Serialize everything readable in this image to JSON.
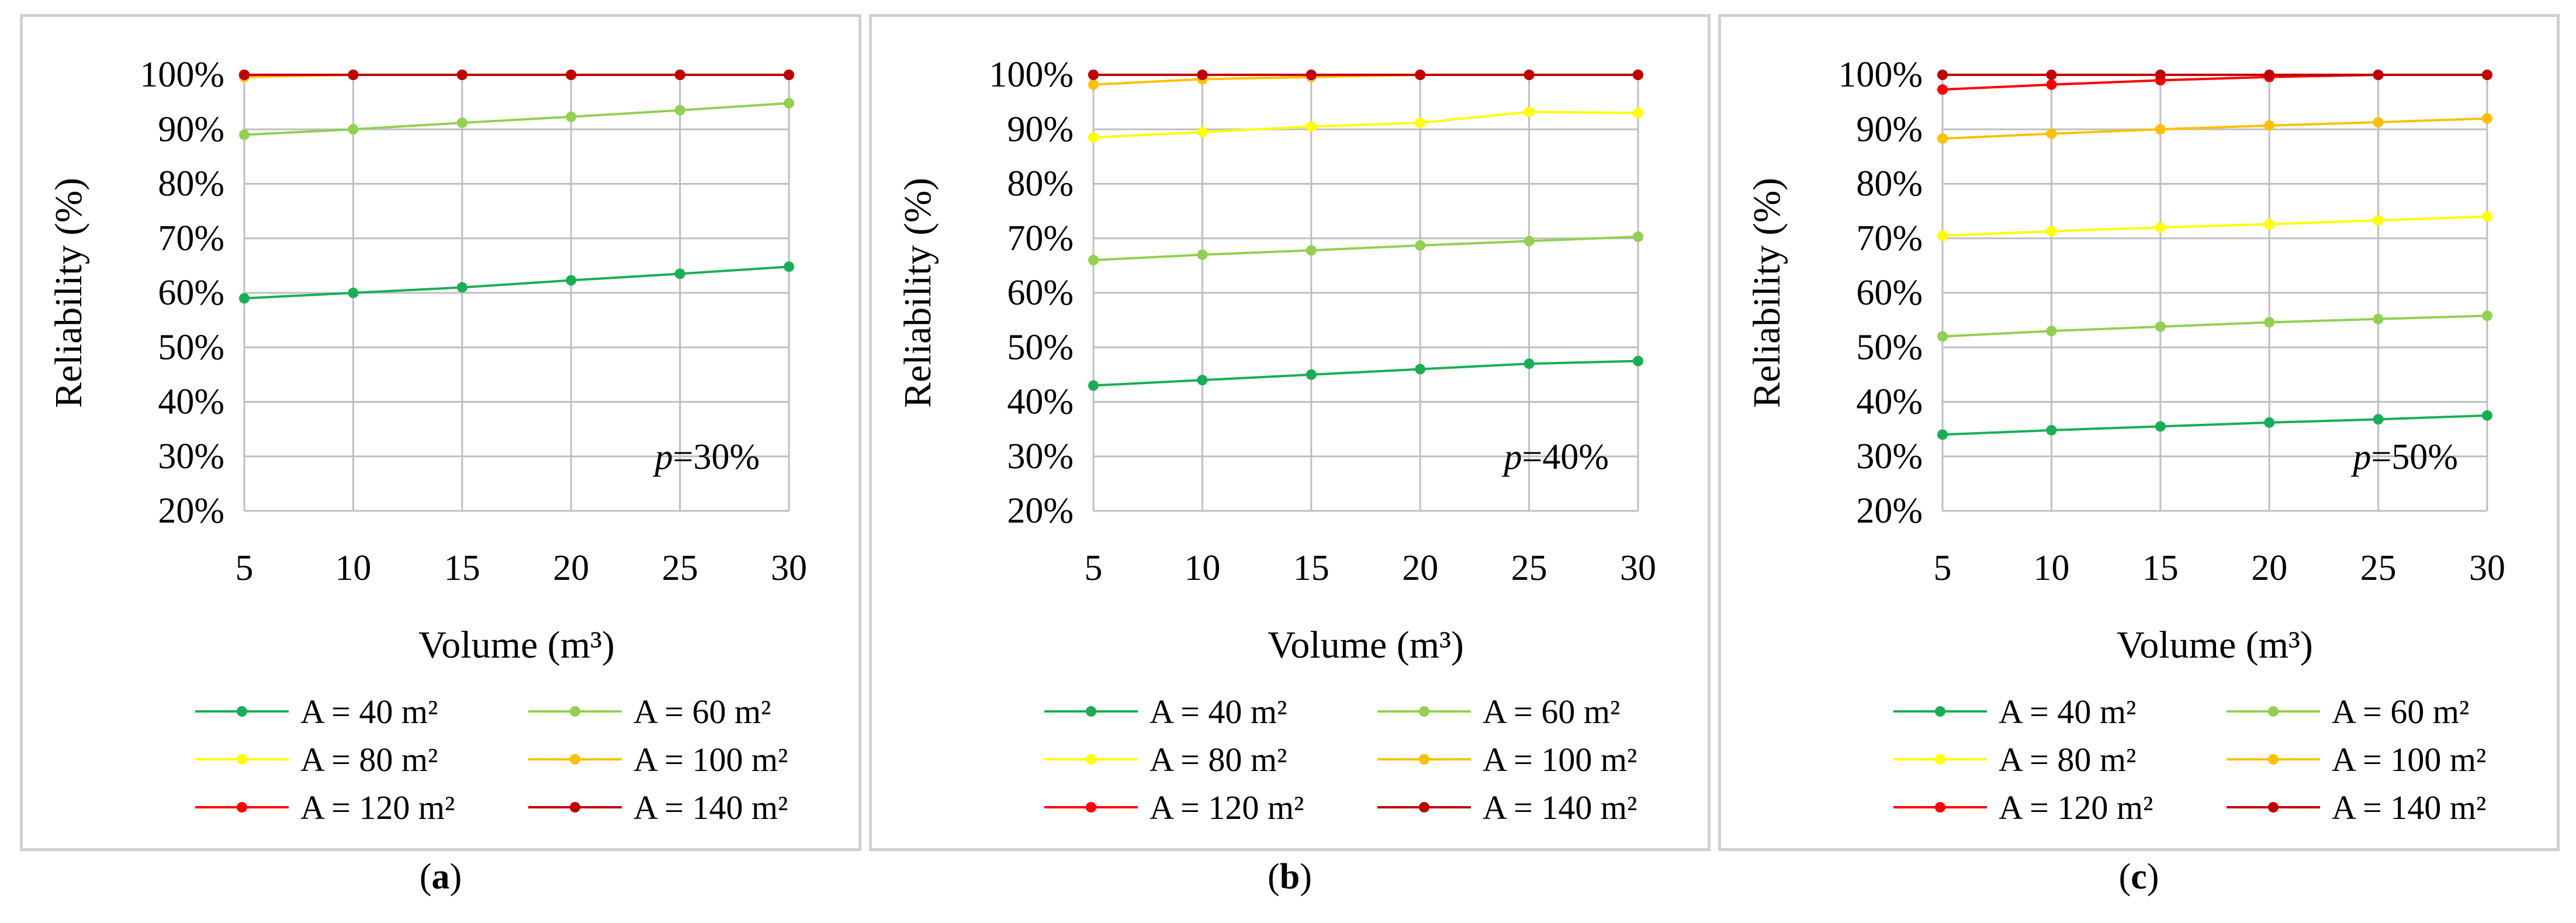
{
  "chart_data": [
    {
      "type": "line",
      "panel": "a",
      "caption": "a",
      "annotation_prefix": "p",
      "annotation_value": "=30%",
      "xlabel": "Volume (m³)",
      "ylabel": "Reliability (%)",
      "x": [
        5,
        10,
        15,
        20,
        25,
        30
      ],
      "ylim": [
        20,
        100
      ],
      "yticks": [
        "20%",
        "30%",
        "40%",
        "50%",
        "60%",
        "70%",
        "80%",
        "90%",
        "100%"
      ],
      "grid": true,
      "legend_position": "bottom",
      "series": [
        {
          "name": "A = 40 m²",
          "color": "#1aae54",
          "values": [
            59,
            60,
            61,
            62.3,
            63.5,
            64.8
          ]
        },
        {
          "name": "A = 60 m²",
          "color": "#92d050",
          "values": [
            89,
            90,
            91.2,
            92.3,
            93.5,
            94.8
          ]
        },
        {
          "name": "A = 80 m²",
          "color": "#ffff00",
          "values": [
            100,
            100,
            100,
            100,
            100,
            100
          ]
        },
        {
          "name": "A = 100 m²",
          "color": "#ffc000",
          "values": [
            99.6,
            100,
            100,
            100,
            100,
            100
          ]
        },
        {
          "name": "A = 120 m²",
          "color": "#ff0000",
          "values": [
            100,
            100,
            100,
            100,
            100,
            100
          ]
        },
        {
          "name": "A = 140 m²",
          "color": "#c00000",
          "values": [
            100,
            100,
            100,
            100,
            100,
            100
          ]
        }
      ]
    },
    {
      "type": "line",
      "panel": "b",
      "caption": "b",
      "annotation_prefix": "p",
      "annotation_value": "=40%",
      "xlabel": "Volume (m³)",
      "ylabel": "Reliability (%)",
      "x": [
        5,
        10,
        15,
        20,
        25,
        30
      ],
      "ylim": [
        20,
        100
      ],
      "yticks": [
        "20%",
        "30%",
        "40%",
        "50%",
        "60%",
        "70%",
        "80%",
        "90%",
        "100%"
      ],
      "grid": true,
      "legend_position": "bottom",
      "series": [
        {
          "name": "A = 40 m²",
          "color": "#1aae54",
          "values": [
            43,
            44,
            45,
            46,
            47,
            47.5
          ]
        },
        {
          "name": "A = 60 m²",
          "color": "#92d050",
          "values": [
            66,
            67,
            67.8,
            68.7,
            69.5,
            70.3
          ]
        },
        {
          "name": "A = 80 m²",
          "color": "#ffff00",
          "values": [
            88.5,
            89.5,
            90.5,
            91.2,
            93.2,
            93
          ]
        },
        {
          "name": "A = 100 m²",
          "color": "#ffc000",
          "values": [
            98.2,
            99.2,
            99.6,
            100,
            100,
            100
          ]
        },
        {
          "name": "A = 120 m²",
          "color": "#ff0000",
          "values": [
            100,
            100,
            100,
            100,
            100,
            100
          ]
        },
        {
          "name": "A = 140 m²",
          "color": "#c00000",
          "values": [
            100,
            100,
            100,
            100,
            100,
            100
          ]
        }
      ]
    },
    {
      "type": "line",
      "panel": "c",
      "caption": "c",
      "annotation_prefix": "p",
      "annotation_value": "=50%",
      "xlabel": "Volume (m³)",
      "ylabel": "Reliability (%)",
      "x": [
        5,
        10,
        15,
        20,
        25,
        30
      ],
      "ylim": [
        20,
        100
      ],
      "yticks": [
        "20%",
        "30%",
        "40%",
        "50%",
        "60%",
        "70%",
        "80%",
        "90%",
        "100%"
      ],
      "grid": true,
      "legend_position": "bottom",
      "series": [
        {
          "name": "A = 40 m²",
          "color": "#1aae54",
          "values": [
            34,
            34.8,
            35.5,
            36.2,
            36.8,
            37.5
          ]
        },
        {
          "name": "A = 60 m²",
          "color": "#92d050",
          "values": [
            52,
            53,
            53.8,
            54.6,
            55.2,
            55.8
          ]
        },
        {
          "name": "A = 80 m²",
          "color": "#ffff00",
          "values": [
            70.5,
            71.3,
            72,
            72.6,
            73.3,
            74
          ]
        },
        {
          "name": "A = 100 m²",
          "color": "#ffc000",
          "values": [
            88.3,
            89.2,
            90,
            90.7,
            91.3,
            92
          ]
        },
        {
          "name": "A = 120 m²",
          "color": "#ff0000",
          "values": [
            97.3,
            98.2,
            99,
            99.6,
            100,
            100
          ]
        },
        {
          "name": "A = 140 m²",
          "color": "#c00000",
          "values": [
            100,
            100,
            100,
            100,
            100,
            100
          ]
        }
      ]
    }
  ]
}
